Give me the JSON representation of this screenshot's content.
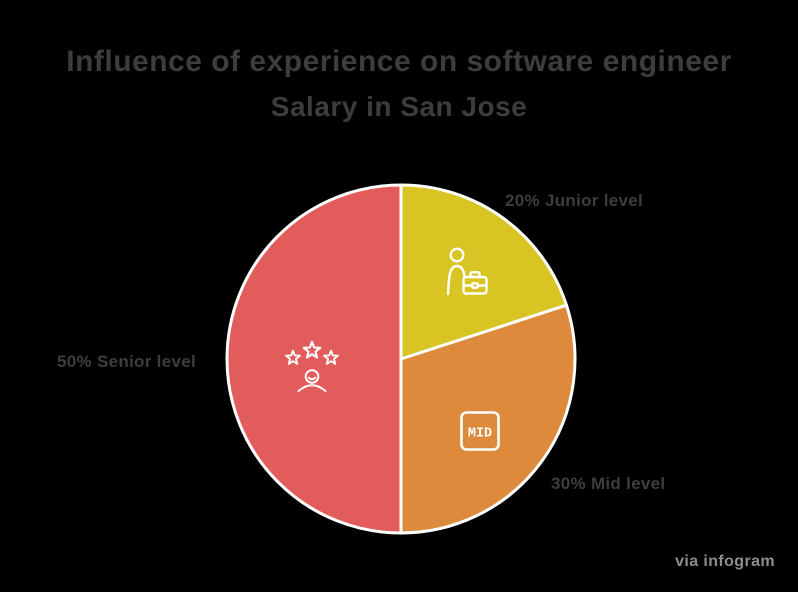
{
  "page": {
    "background": "#000000"
  },
  "title": {
    "line1": "Influence of experience on software engineer",
    "line2": "Salary in San Jose",
    "color": "#3d3d3d"
  },
  "watermark": {
    "text": "via infogram",
    "color": "#8d8d8d"
  },
  "chart_data": {
    "type": "pie",
    "title": "Influence of experience on software engineer Salary in San Jose",
    "unit": "%",
    "start_angle_deg": -90,
    "direction": "clockwise",
    "legend_position": "none",
    "separator_color": "#ffffff",
    "labels_color": "#3d3d3d",
    "icon_stroke_color": "#ffffff",
    "mid_icon_text": "MID",
    "slices": [
      {
        "label": "Junior level",
        "value": 20,
        "callout": "20% Junior level",
        "color": "#d8c422",
        "icon": "junior-person-briefcase-icon"
      },
      {
        "label": "Mid level",
        "value": 30,
        "callout": "30% Mid level",
        "color": "#dd8a3c",
        "icon": "mid-badge-icon"
      },
      {
        "label": "Senior level",
        "value": 50,
        "callout": "50% Senior level",
        "color": "#e25c5c",
        "icon": "senior-stars-person-icon"
      }
    ]
  }
}
